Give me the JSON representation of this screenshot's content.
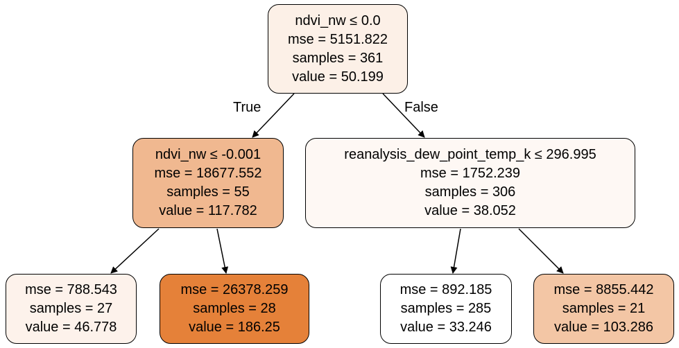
{
  "tree": {
    "root": {
      "lines": [
        "ndvi_nw ≤ 0.0",
        "mse = 5151.822",
        "samples = 361",
        "value = 50.199"
      ],
      "fill": "#fcf0e7"
    },
    "left": {
      "lines": [
        "ndvi_nw ≤ -0.001",
        "mse = 18677.552",
        "samples = 55",
        "value = 117.782"
      ],
      "fill": "#f0b890"
    },
    "right": {
      "lines": [
        "reanalysis_dew_point_temp_k ≤ 296.995",
        "mse = 1752.239",
        "samples = 306",
        "value = 38.052"
      ],
      "fill": "#fef8f4"
    },
    "left_left": {
      "lines": [
        "mse = 788.543",
        "samples = 27",
        "value = 46.778"
      ],
      "fill": "#fdf2eb"
    },
    "left_right": {
      "lines": [
        "mse = 26378.259",
        "samples = 28",
        "value = 186.25"
      ],
      "fill": "#e58139"
    },
    "right_left": {
      "lines": [
        "mse = 892.185",
        "samples = 285",
        "value = 33.246"
      ],
      "fill": "#ffffff"
    },
    "right_right": {
      "lines": [
        "mse = 8855.442",
        "samples = 21",
        "value = 103.286"
      ],
      "fill": "#f3c6a5"
    }
  },
  "edge_labels": {
    "true_label": "True",
    "false_label": "False"
  }
}
